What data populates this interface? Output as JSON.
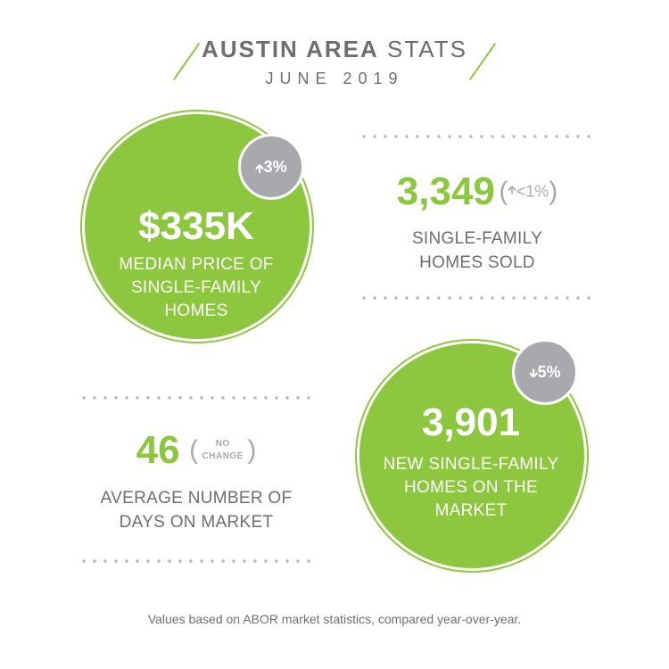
{
  "header": {
    "title_bold": "AUSTIN AREA",
    "title_light": "STATS",
    "subtitle": "JUNE 2019"
  },
  "median_price": {
    "value": "$335K",
    "caption_lines": [
      "MEDIAN PRICE OF",
      "SINGLE-FAMILY",
      "HOMES"
    ],
    "change": "3%",
    "direction_icon": "arrow-up-icon"
  },
  "homes_sold": {
    "value": "3,349",
    "change": "<1%",
    "direction_icon": "arrow-up-icon",
    "caption_lines": [
      "SINGLE-FAMILY",
      "HOMES SOLD"
    ]
  },
  "days_on_market": {
    "value": "46",
    "change_lines": [
      "NO",
      "CHANGE"
    ],
    "caption_lines": [
      "AVERAGE NUMBER OF",
      "DAYS ON MARKET"
    ]
  },
  "new_listings": {
    "value": "3,901",
    "caption_lines": [
      "NEW SINGLE-FAMILY",
      "HOMES ON THE",
      "MARKET"
    ],
    "change": "5%",
    "direction_icon": "arrow-down-icon"
  },
  "footnote": "Values based on ABOR market statistics, compared year-over-year.",
  "colors": {
    "green": "#8dc63f",
    "gray_badge": "#a7a9ac",
    "text": "#6d6e71"
  }
}
